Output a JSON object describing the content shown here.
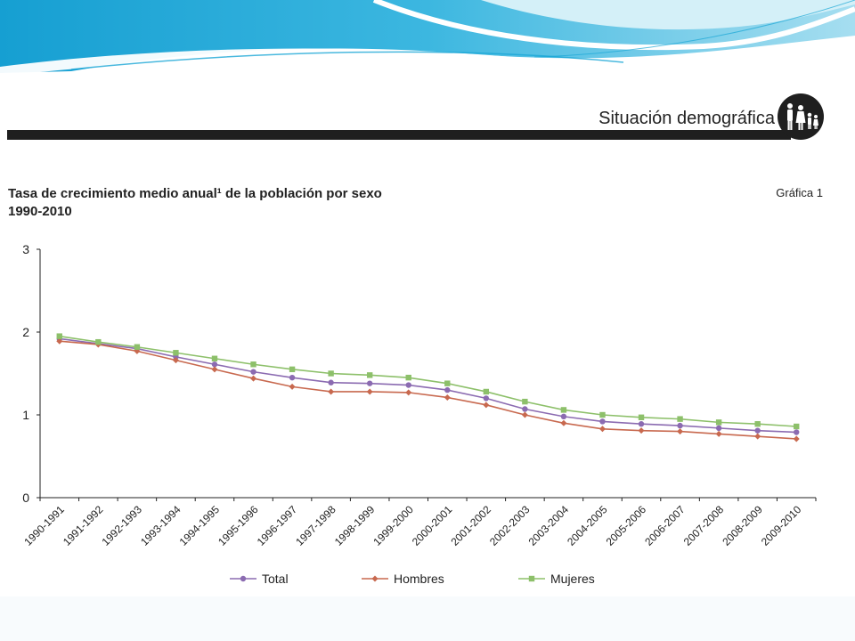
{
  "header": {
    "section_title": "Situación demográfica",
    "logo_icon": "family-icon"
  },
  "chart_heading": {
    "title_line1": "Tasa de crecimiento medio anual¹ de la población por sexo",
    "title_line2": "1990-2010",
    "number": "Gráfica 1"
  },
  "colors": {
    "banner_dark": "#1aa6d6",
    "banner_light": "#bfe8f5",
    "header_bar": "#1f1f1f"
  },
  "chart_data": {
    "type": "line",
    "title": "Tasa de crecimiento medio anual¹ de la población por sexo",
    "subtitle": "1990-2010",
    "xlabel": "",
    "ylabel": "",
    "ylim": [
      0,
      3
    ],
    "yticks": [
      0,
      1,
      2,
      3
    ],
    "grid": false,
    "legend": "bottom",
    "categories": [
      "1990-1991",
      "1991-1992",
      "1992-1993",
      "1993-1994",
      "1994-1995",
      "1995-1996",
      "1996-1997",
      "1997-1998",
      "1998-1999",
      "1999-2000",
      "2000-2001",
      "2001-2002",
      "2002-2003",
      "2003-2004",
      "2004-2005",
      "2005-2006",
      "2006-2007",
      "2007-2008",
      "2008-2009",
      "2009-2010"
    ],
    "series": [
      {
        "name": "Total",
        "color": "#8b6bb1",
        "marker": "circle",
        "values": [
          1.92,
          1.86,
          1.8,
          1.7,
          1.61,
          1.52,
          1.45,
          1.39,
          1.38,
          1.36,
          1.3,
          1.2,
          1.07,
          0.98,
          0.92,
          0.89,
          0.87,
          0.84,
          0.81,
          0.79
        ]
      },
      {
        "name": "Hombres",
        "color": "#c8694f",
        "marker": "diamond",
        "values": [
          1.89,
          1.85,
          1.77,
          1.66,
          1.55,
          1.44,
          1.34,
          1.28,
          1.28,
          1.27,
          1.21,
          1.12,
          1.0,
          0.9,
          0.83,
          0.81,
          0.8,
          0.77,
          0.74,
          0.71
        ]
      },
      {
        "name": "Mujeres",
        "color": "#8dc06a",
        "marker": "square",
        "values": [
          1.95,
          1.88,
          1.82,
          1.75,
          1.68,
          1.61,
          1.55,
          1.5,
          1.48,
          1.45,
          1.38,
          1.28,
          1.16,
          1.06,
          1.0,
          0.97,
          0.95,
          0.91,
          0.89,
          0.86
        ]
      }
    ]
  }
}
